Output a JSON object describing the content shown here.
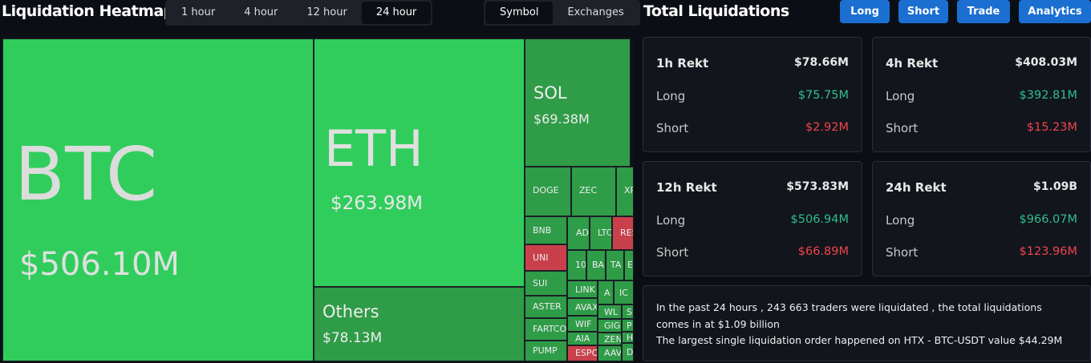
{
  "header": {
    "title": "Liquidation Heatmap",
    "tabs": [
      "1 hour",
      "4 hour",
      "12 hour",
      "24 hour"
    ],
    "toggle": [
      "Symbol",
      "Exchanges"
    ],
    "panel_title": "Total Liquidations",
    "buttons": [
      "Long",
      "Short",
      "Trade",
      "Analytics"
    ]
  },
  "treemap": {
    "cells": [
      {
        "label": "BTC",
        "value": "$506.10M"
      },
      {
        "label": "ETH",
        "value": "$263.98M"
      },
      {
        "label": "Others",
        "value": "$78.13M"
      },
      {
        "label": "SOL",
        "value": "$69.38M"
      },
      {
        "label": "DOGE"
      },
      {
        "label": "ZEC"
      },
      {
        "label": "XR"
      },
      {
        "label": "BNB"
      },
      {
        "label": "AD"
      },
      {
        "label": "LTC"
      },
      {
        "label": "RES"
      },
      {
        "label": "UNI"
      },
      {
        "label": "10"
      },
      {
        "label": "BA"
      },
      {
        "label": "TA"
      },
      {
        "label": "E"
      },
      {
        "label": "SUI"
      },
      {
        "label": "LINK"
      },
      {
        "label": "A"
      },
      {
        "label": "IC"
      },
      {
        "label": "ASTER"
      },
      {
        "label": "AVAX"
      },
      {
        "label": "WL"
      },
      {
        "label": "S"
      },
      {
        "label": "FARTCO"
      },
      {
        "label": "WIF"
      },
      {
        "label": "GIG"
      },
      {
        "label": "P"
      },
      {
        "label": "AIA"
      },
      {
        "label": "ZEN"
      },
      {
        "label": "H"
      },
      {
        "label": "PUMP"
      },
      {
        "label": "ESPO"
      },
      {
        "label": "AAV"
      },
      {
        "label": "D"
      }
    ]
  },
  "cards": [
    {
      "title": "1h Rekt",
      "total": "$78.66M",
      "long_label": "Long",
      "long": "$75.75M",
      "short_label": "Short",
      "short": "$2.92M"
    },
    {
      "title": "4h Rekt",
      "total": "$408.03M",
      "long_label": "Long",
      "long": "$392.81M",
      "short_label": "Short",
      "short": "$15.23M"
    },
    {
      "title": "12h Rekt",
      "total": "$573.83M",
      "long_label": "Long",
      "long": "$506.94M",
      "short_label": "Short",
      "short": "$66.89M"
    },
    {
      "title": "24h Rekt",
      "total": "$1.09B",
      "long_label": "Long",
      "long": "$966.07M",
      "short_label": "Short",
      "short": "$123.96M"
    }
  ],
  "summary": [
    "In the past 24 hours , 243 663 traders were liquidated , the total liquidations comes in at $1.09 billion",
    "The largest single liquidation order happened on HTX - BTC-USDT value $44.29M"
  ]
}
